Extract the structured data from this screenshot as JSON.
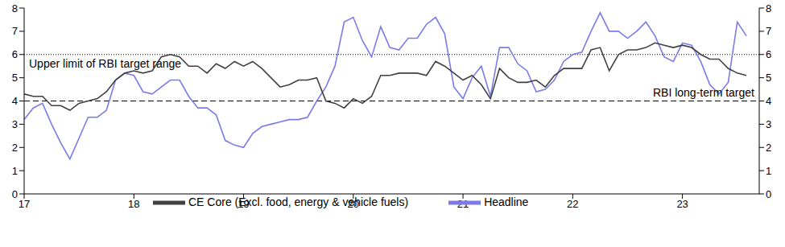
{
  "chart_data": {
    "type": "line",
    "x": [
      2017,
      2017.083,
      2017.167,
      2017.25,
      2017.333,
      2017.417,
      2017.5,
      2017.583,
      2017.667,
      2017.75,
      2017.833,
      2017.917,
      2018,
      2018.083,
      2018.167,
      2018.25,
      2018.333,
      2018.417,
      2018.5,
      2018.583,
      2018.667,
      2018.75,
      2018.833,
      2018.917,
      2019,
      2019.083,
      2019.167,
      2019.25,
      2019.333,
      2019.417,
      2019.5,
      2019.583,
      2019.667,
      2019.75,
      2019.833,
      2019.917,
      2020,
      2020.083,
      2020.167,
      2020.25,
      2020.333,
      2020.417,
      2020.5,
      2020.583,
      2020.667,
      2020.75,
      2020.833,
      2020.917,
      2021,
      2021.083,
      2021.167,
      2021.25,
      2021.333,
      2021.417,
      2021.5,
      2021.583,
      2021.667,
      2021.75,
      2021.833,
      2021.917,
      2022,
      2022.083,
      2022.167,
      2022.25,
      2022.333,
      2022.417,
      2022.5,
      2022.583,
      2022.667,
      2022.75,
      2022.833,
      2022.917,
      2023,
      2023.083,
      2023.167,
      2023.25,
      2023.333,
      2023.417,
      2023.5,
      2023.583
    ],
    "series": [
      {
        "name": "Headline",
        "color": "#7b7be8",
        "values": [
          3.2,
          3.7,
          3.9,
          3.0,
          2.2,
          1.5,
          2.4,
          3.3,
          3.3,
          3.6,
          4.9,
          5.2,
          5.1,
          4.4,
          4.3,
          4.6,
          4.9,
          4.9,
          4.2,
          3.7,
          3.7,
          3.4,
          2.3,
          2.1,
          2.0,
          2.6,
          2.9,
          3.0,
          3.1,
          3.2,
          3.2,
          3.3,
          4.0,
          4.6,
          5.5,
          7.4,
          7.6,
          6.6,
          5.9,
          7.2,
          6.3,
          6.2,
          6.7,
          6.7,
          7.3,
          7.6,
          6.9,
          4.6,
          4.1,
          5.0,
          5.5,
          4.2,
          6.3,
          6.3,
          5.6,
          5.3,
          4.4,
          4.5,
          4.9,
          5.7,
          6.0,
          6.1,
          7.0,
          7.8,
          7.0,
          7.0,
          6.7,
          7.0,
          7.4,
          6.8,
          5.9,
          5.7,
          6.5,
          6.4,
          5.7,
          4.7,
          4.3,
          4.8,
          7.4,
          6.8
        ]
      },
      {
        "name": "CE Core (Excl. food, energy & vehicle fuels)",
        "color": "#404040",
        "values": [
          4.3,
          4.2,
          4.2,
          3.8,
          3.8,
          3.6,
          3.9,
          4.0,
          4.1,
          4.4,
          4.9,
          5.2,
          5.3,
          5.2,
          5.3,
          5.9,
          6.0,
          5.9,
          5.5,
          5.5,
          5.2,
          5.6,
          5.4,
          5.7,
          5.5,
          5.7,
          5.4,
          5.0,
          4.6,
          4.7,
          4.9,
          4.9,
          5.0,
          4.0,
          3.9,
          3.7,
          4.1,
          3.9,
          4.2,
          5.1,
          5.1,
          5.2,
          5.2,
          5.2,
          5.1,
          5.7,
          5.5,
          5.2,
          4.9,
          5.1,
          4.7,
          4.1,
          5.4,
          5.0,
          4.8,
          4.8,
          4.9,
          4.6,
          5.1,
          5.4,
          5.4,
          5.4,
          6.2,
          6.3,
          5.3,
          6.0,
          6.2,
          6.2,
          6.3,
          6.5,
          6.4,
          6.3,
          6.4,
          6.3,
          6.0,
          5.8,
          5.8,
          5.4,
          5.2,
          5.1
        ]
      }
    ],
    "xlim": [
      2017,
      2023.7
    ],
    "xticks": [
      {
        "value": 2017,
        "label": "17"
      },
      {
        "value": 2018,
        "label": "18"
      },
      {
        "value": 2019,
        "label": "19"
      },
      {
        "value": 2020,
        "label": "20"
      },
      {
        "value": 2021,
        "label": "21"
      },
      {
        "value": 2022,
        "label": "22"
      },
      {
        "value": 2023,
        "label": "23"
      }
    ],
    "ylim": [
      0,
      8
    ],
    "yticks": [
      0,
      1,
      2,
      3,
      4,
      5,
      6,
      7,
      8
    ],
    "y2lim": [
      0,
      8
    ],
    "y2ticks": [
      0,
      1,
      2,
      3,
      4,
      5,
      6,
      7,
      8
    ],
    "annotations": [
      {
        "y": 6,
        "label": "Upper limit of RBI target range",
        "line_style": "dotted"
      },
      {
        "y": 4,
        "label": "RBI long-term target",
        "line_style": "dashed"
      }
    ],
    "grid": false,
    "legend": "lower left"
  }
}
